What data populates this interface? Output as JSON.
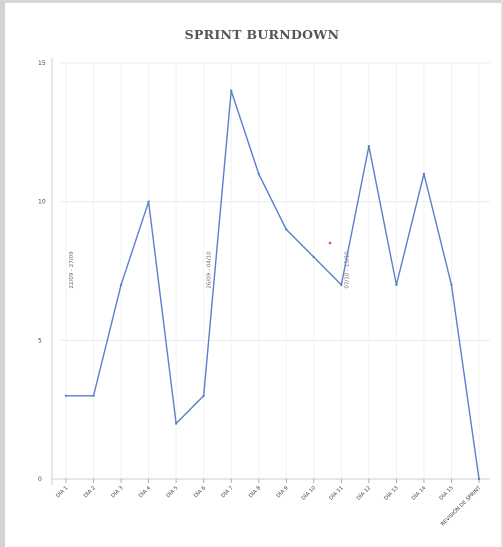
{
  "chart_data": {
    "type": "line",
    "title": "SPRINT BURNDOWN",
    "xlabel": "",
    "ylabel": "",
    "categories": [
      "DÍA 1",
      "DÍA 2",
      "DÍA 3",
      "DÍA 4",
      "DÍA 5",
      "DÍA 6",
      "DÍA 7",
      "DÍA 8",
      "DÍA 9",
      "DÍA 10",
      "DÍA 11",
      "DÍA 12",
      "DÍA 13",
      "DÍA 14",
      "DÍA 15",
      "REVISIÓN DE SPRINT"
    ],
    "values": [
      3,
      3,
      7,
      10,
      2,
      3,
      14,
      11,
      9,
      8,
      7,
      12,
      7,
      11,
      7,
      0
    ],
    "ylim": [
      0,
      15
    ],
    "yticks": [
      0,
      5,
      10,
      15
    ],
    "grid": true,
    "line_color": "#5b7fc9",
    "marker_color": "#e0505a",
    "annotations": [
      {
        "label": "22/09 - 27/09",
        "category_index": 0
      },
      {
        "label": "26/09 - 04/10",
        "category_index": 5
      },
      {
        "label": "07/10 - 15/10",
        "category_index": 10
      }
    ]
  }
}
